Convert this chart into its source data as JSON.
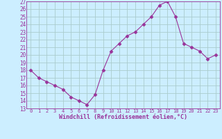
{
  "x": [
    0,
    1,
    2,
    3,
    4,
    5,
    6,
    7,
    8,
    9,
    10,
    11,
    12,
    13,
    14,
    15,
    16,
    17,
    18,
    19,
    20,
    21,
    22,
    23
  ],
  "y": [
    18,
    17,
    16.5,
    16,
    15.5,
    14.5,
    14,
    13.5,
    14.8,
    18,
    20.5,
    21.5,
    22.5,
    23,
    24,
    25,
    26.5,
    27,
    25,
    21.5,
    21,
    20.5,
    19.5,
    20
  ],
  "line_color": "#993399",
  "marker": "D",
  "marker_size": 2.5,
  "bg_color": "#cceeff",
  "grid_color": "#aacccc",
  "xlabel": "Windchill (Refroidissement éolien,°C)",
  "xlabel_color": "#993399",
  "tick_color": "#993399",
  "ylim": [
    13,
    27
  ],
  "xlim": [
    -0.5,
    23.5
  ],
  "yticks": [
    13,
    14,
    15,
    16,
    17,
    18,
    19,
    20,
    21,
    22,
    23,
    24,
    25,
    26,
    27
  ],
  "xticks": [
    0,
    1,
    2,
    3,
    4,
    5,
    6,
    7,
    8,
    9,
    10,
    11,
    12,
    13,
    14,
    15,
    16,
    17,
    18,
    19,
    20,
    21,
    22,
    23
  ]
}
